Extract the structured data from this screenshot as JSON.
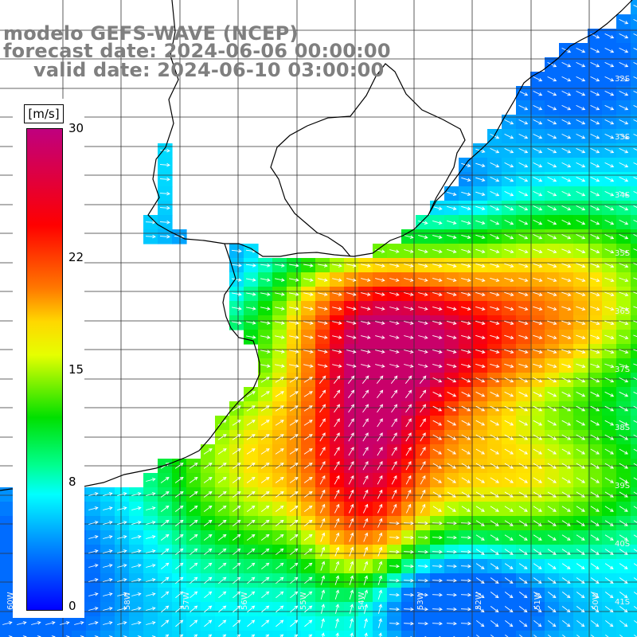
{
  "title": {
    "line1": "modelo GEFS-WAVE (NCEP)",
    "line2": "forecast date: 2024-06-06 00:00:00",
    "line3": "valid date: 2024-06-10 03:00:00"
  },
  "colorbar": {
    "units": "[m/s]",
    "ticks": [
      {
        "label": "30",
        "value": 30
      },
      {
        "label": "22",
        "value": 22
      },
      {
        "label": "15",
        "value": 15
      },
      {
        "label": "8",
        "value": 8
      },
      {
        "label": "0",
        "value": 0
      }
    ],
    "min": 0,
    "max": 30
  },
  "map": {
    "lat_labels": [
      "32S",
      "33S",
      "34S",
      "35S",
      "36S",
      "37S",
      "38S",
      "39S",
      "40S",
      "41S"
    ],
    "lon_labels": [
      "60W",
      "59W",
      "58W",
      "57W",
      "56W",
      "55W",
      "54W",
      "53W",
      "52W",
      "51W",
      "50W"
    ],
    "variable": "wind speed",
    "colors": {
      "grid": "#333333",
      "coast": "#000000",
      "vectors": "#ffffff"
    }
  }
}
